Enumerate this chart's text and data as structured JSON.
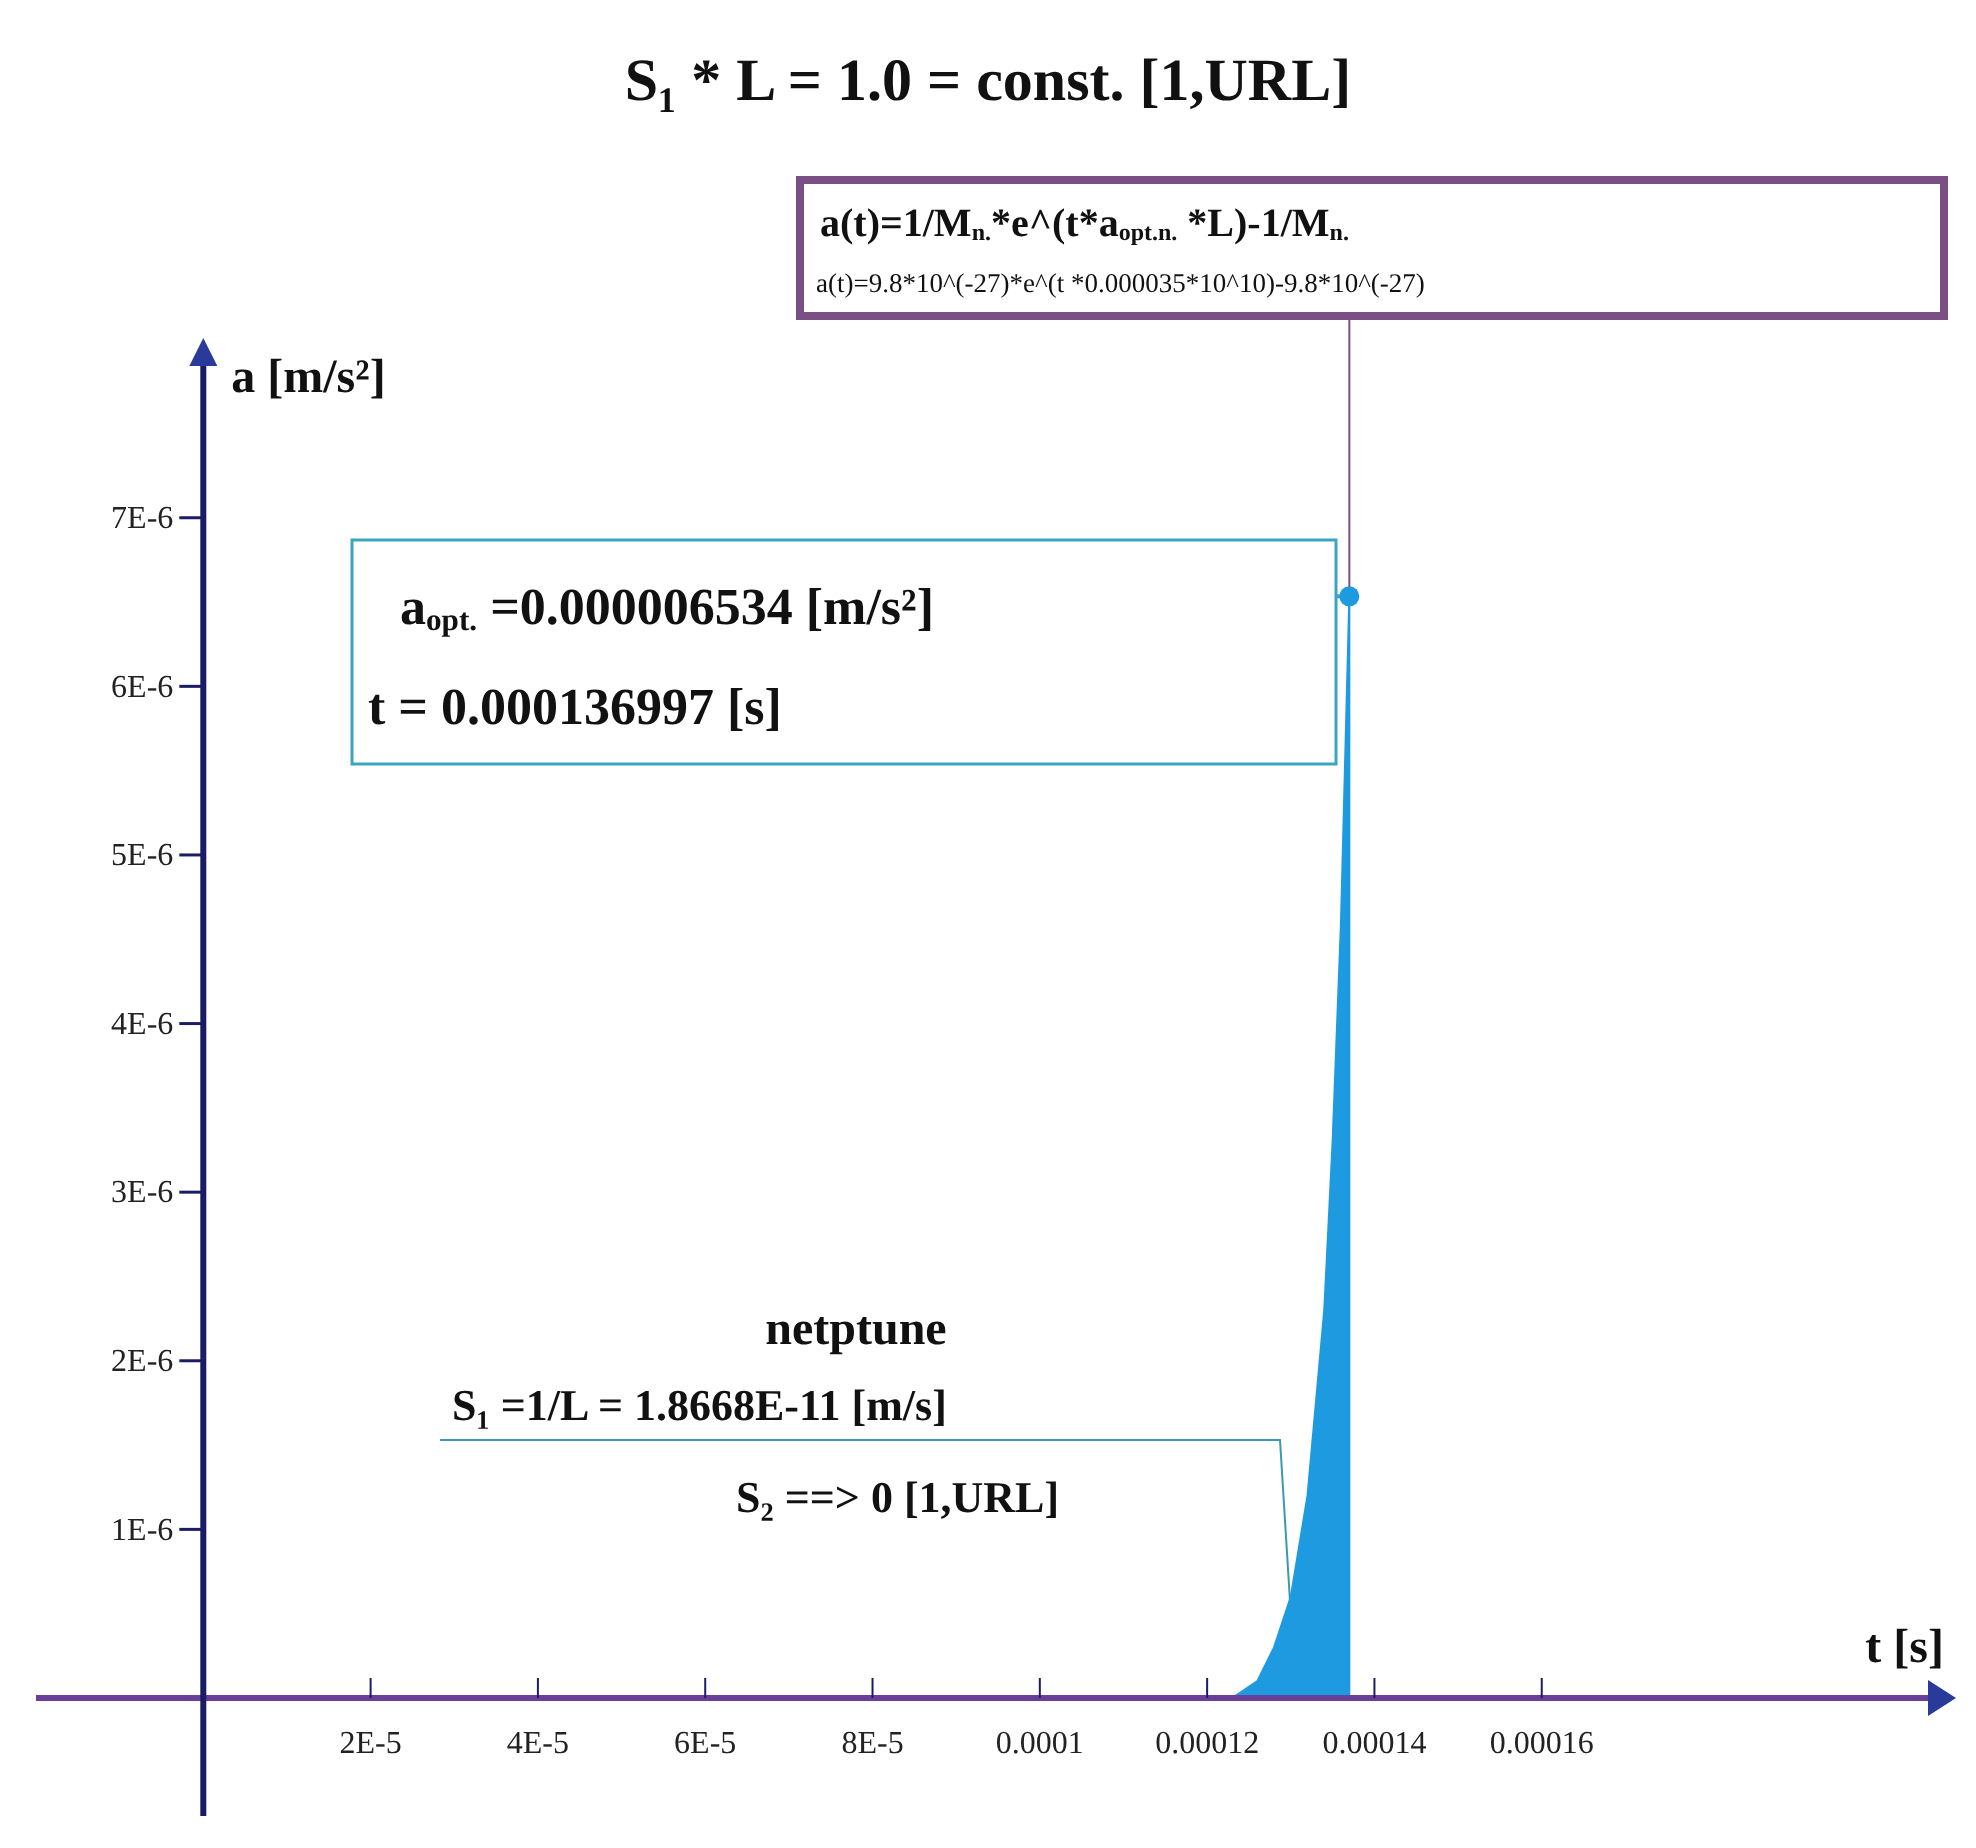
{
  "chart_data": {
    "type": "area",
    "title": "S₁ * L = 1.0 = const. [1,URL]",
    "xlabel": "t [s]",
    "ylabel": "a [m/s²]",
    "xlim": [
      -2e-05,
      0.00021
    ],
    "ylim": [
      -7e-07,
      7.9e-06
    ],
    "xticks": [
      {
        "value": 2e-05,
        "label": "2E-5"
      },
      {
        "value": 4e-05,
        "label": "4E-5"
      },
      {
        "value": 6e-05,
        "label": "6E-5"
      },
      {
        "value": 8e-05,
        "label": "8E-5"
      },
      0.0001,
      0.00012,
      0.00014,
      0.00016
    ],
    "yticks": [
      {
        "value": 1e-06,
        "label": "1E-6"
      },
      {
        "value": 2e-06,
        "label": "2E-6"
      },
      {
        "value": 3e-06,
        "label": "3E-6"
      },
      {
        "value": 4e-06,
        "label": "4E-6"
      },
      {
        "value": 5e-06,
        "label": "5E-6"
      },
      {
        "value": 6e-06,
        "label": "6E-6"
      },
      {
        "value": 7e-06,
        "label": "7E-6"
      }
    ],
    "series": [
      {
        "color": "#1e9be0",
        "x": [
          0.000123,
          0.000126,
          0.000128,
          0.00013,
          0.000132,
          0.000134,
          0.000135,
          0.000136,
          0.000137,
          0.000137
        ],
        "values": [
          0,
          1e-07,
          3e-07,
          6e-07,
          1.2e-06,
          2.3e-06,
          3.3e-06,
          4.6e-06,
          6.534e-06,
          0
        ]
      },
      {
        "type": "scatter",
        "color": "#1e9be0",
        "marker": "circle",
        "x": [
          0.000137
        ],
        "values": [
          6.534e-06
        ]
      }
    ],
    "annotations": [
      "a(t)=1/M$_{n.}$*e^(t*a$_{opt.n.}$ *L)-1/M$_{n.}$",
      {
        "text": "a(t)=9.8*10^(-27)*e^(t *0.000035*10^10)-9.8*10^(-27)",
        "x": 0.000137,
        "y": 6.534e-06
      },
      "a$_{opt.}$ =0.000006534 [m/s²]",
      "t = 0.000136997 [s]",
      "netptune",
      "S₁ =1/L = 1.8668E-11 [m/s]",
      {
        "text": "S₂ ==> 0 [1,URL]",
        "x": 0.00013,
        "y": 5e-07
      }
    ]
  }
}
